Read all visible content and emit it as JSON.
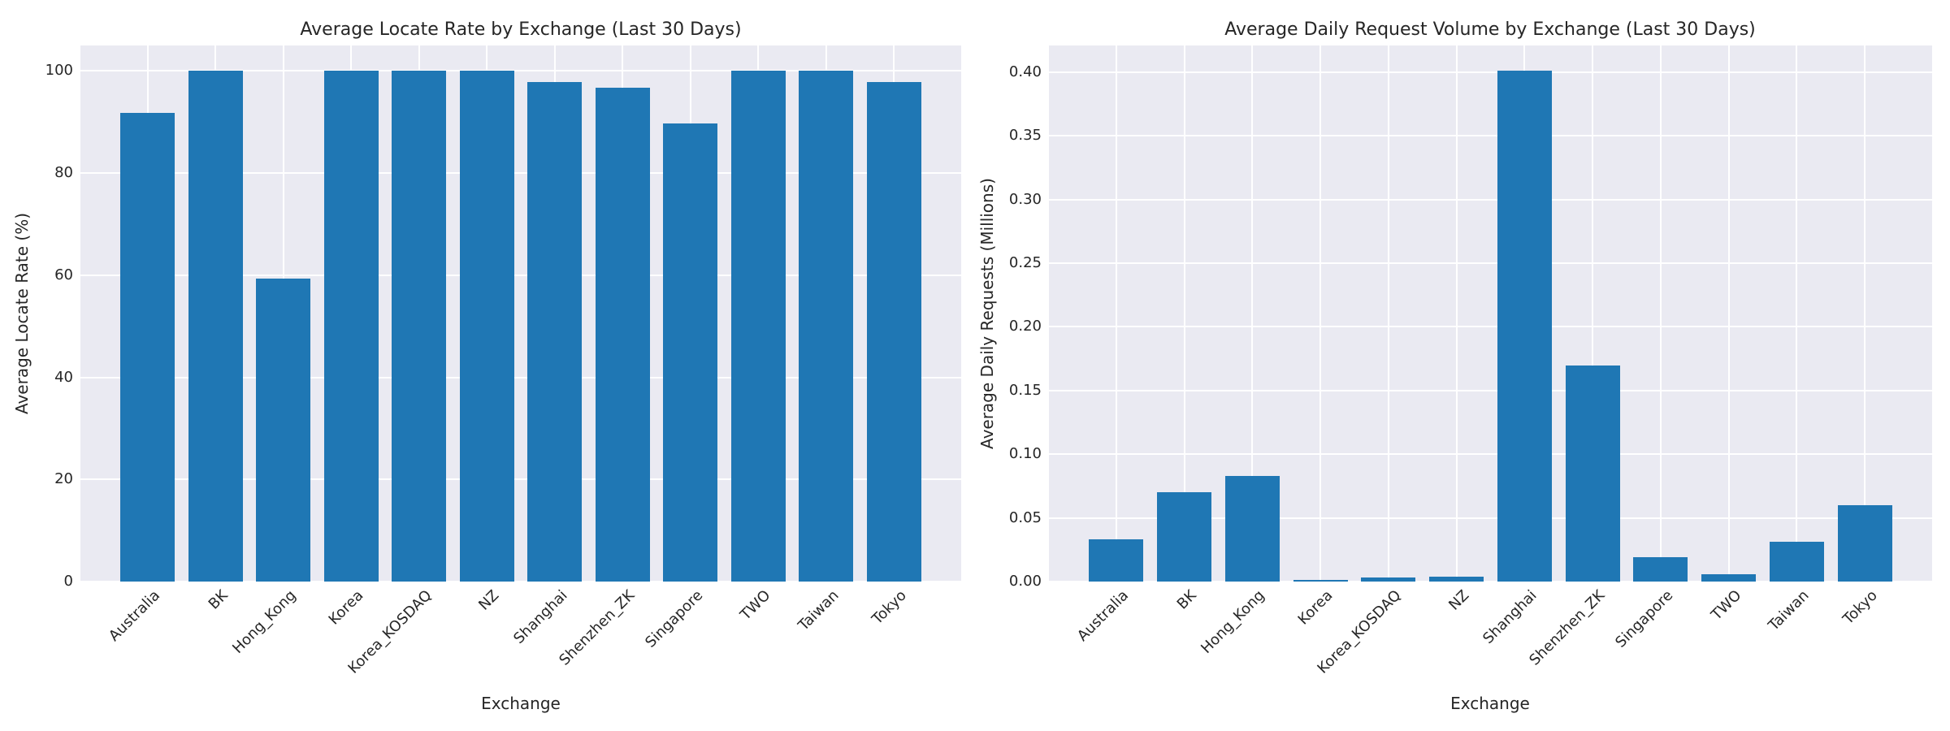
{
  "figure": {
    "background_color": "#ffffff",
    "plot_background_color": "#eaeaf2",
    "grid_color": "#ffffff",
    "bar_color": "#1f77b4",
    "text_color": "#262626"
  },
  "chart_data": [
    {
      "type": "bar",
      "title": "Average Locate Rate by Exchange (Last 30 Days)",
      "xlabel": "Exchange",
      "ylabel": "Average Locate Rate (%)",
      "categories": [
        "Australia",
        "BK",
        "Hong_Kong",
        "Korea",
        "Korea_KOSDAQ",
        "NZ",
        "Shanghai",
        "Shenzhen_ZK",
        "Singapore",
        "TWO",
        "Taiwan",
        "Tokyo"
      ],
      "values": [
        91.8,
        100.0,
        59.3,
        100.0,
        100.0,
        100.0,
        97.9,
        96.7,
        89.8,
        100.0,
        100.0,
        97.8
      ],
      "ylim": [
        0,
        105
      ],
      "yticks": [
        0,
        20,
        40,
        60,
        80,
        100
      ],
      "ytick_labels": [
        "0",
        "20",
        "40",
        "60",
        "80",
        "100"
      ],
      "grid": true,
      "legend": null,
      "bar_color": "#1f77b4"
    },
    {
      "type": "bar",
      "title": "Average Daily Request Volume by Exchange (Last 30 Days)",
      "xlabel": "Exchange",
      "ylabel": "Average Daily Requests (Millions)",
      "categories": [
        "Australia",
        "BK",
        "Hong_Kong",
        "Korea",
        "Korea_KOSDAQ",
        "NZ",
        "Shanghai",
        "Shenzhen_ZK",
        "Singapore",
        "TWO",
        "Taiwan",
        "Tokyo"
      ],
      "values": [
        0.033,
        0.07,
        0.083,
        0.001,
        0.003,
        0.004,
        0.401,
        0.17,
        0.019,
        0.006,
        0.031,
        0.06
      ],
      "ylim": [
        0,
        0.421
      ],
      "yticks": [
        0.0,
        0.05,
        0.1,
        0.15,
        0.2,
        0.25,
        0.3,
        0.35,
        0.4
      ],
      "ytick_labels": [
        "0.00",
        "0.05",
        "0.10",
        "0.15",
        "0.20",
        "0.25",
        "0.30",
        "0.35",
        "0.40"
      ],
      "grid": true,
      "legend": null,
      "bar_color": "#1f77b4"
    }
  ]
}
